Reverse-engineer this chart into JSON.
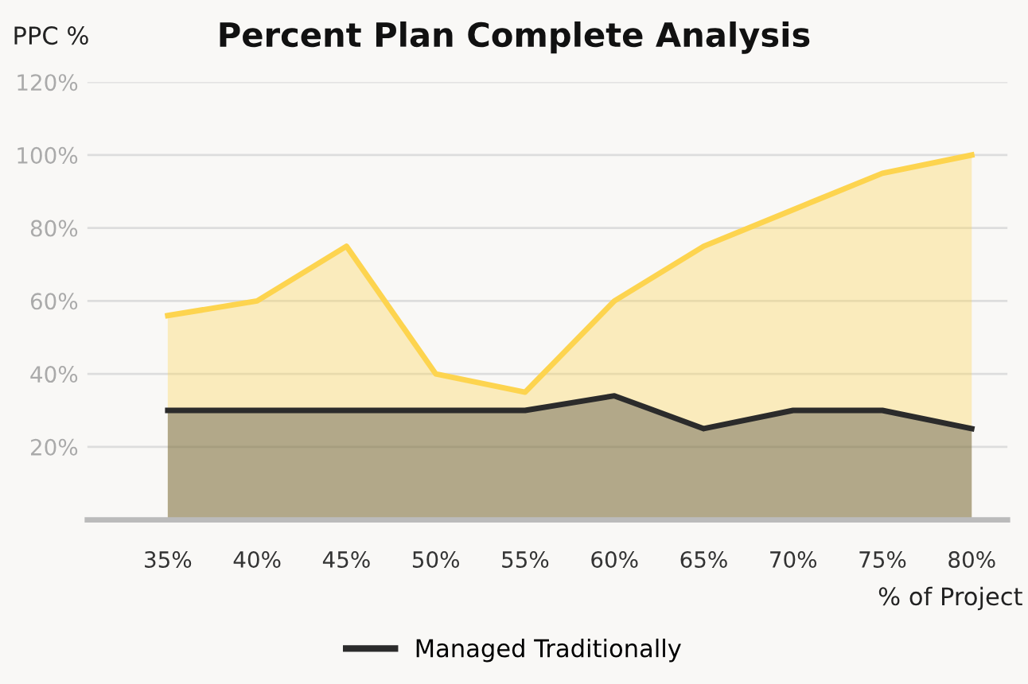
{
  "chart_data": {
    "type": "area",
    "title": "Percent Plan Complete Analysis",
    "ylabel": "PPC %",
    "xlabel": "% of Project",
    "categories": [
      "35%",
      "40%",
      "45%",
      "50%",
      "55%",
      "60%",
      "65%",
      "70%",
      "75%",
      "80%"
    ],
    "series": [
      {
        "name": "Managed Traditionally",
        "color": "#2b2b2b",
        "values": [
          30,
          30,
          30,
          30,
          30,
          34,
          25,
          30,
          30,
          25
        ]
      },
      {
        "color": "#fdd44f",
        "values": [
          56,
          60,
          75,
          40,
          35,
          60,
          75,
          85,
          95,
          100
        ]
      }
    ],
    "ylim": [
      0,
      120
    ],
    "yticks": [
      {
        "value": 20,
        "label": "20%"
      },
      {
        "value": 40,
        "label": "40%"
      },
      {
        "value": 60,
        "label": "60%"
      },
      {
        "value": 80,
        "label": "80%"
      },
      {
        "value": 100,
        "label": "100%"
      },
      {
        "value": 120,
        "label": "120%"
      }
    ],
    "grid": "y",
    "legend": "bottom"
  }
}
